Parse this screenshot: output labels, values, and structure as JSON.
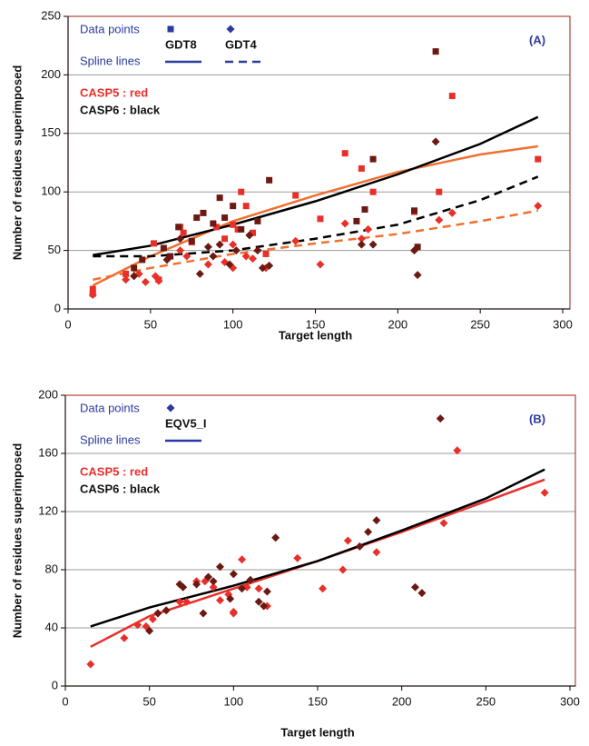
{
  "chart_data": [
    {
      "type": "scatter",
      "panel_label": "(A)",
      "x_label": "Target length",
      "y_label": "Number of residues superimposed",
      "xlim": [
        0,
        300
      ],
      "xticks": [
        0,
        50,
        100,
        150,
        200,
        250,
        300
      ],
      "ylim": [
        0,
        250
      ],
      "yticks": [
        0,
        50,
        100,
        150,
        200,
        250
      ],
      "grid": true,
      "legend": {
        "color": "#2b3aa0",
        "points_label": "Data points",
        "lines_label": "Spline lines",
        "entries": [
          {
            "label": "GDT8",
            "marker": "square",
            "dash": false
          },
          {
            "label": "GDT4",
            "marker": "diamond",
            "dash": true
          }
        ]
      },
      "notes": [
        {
          "text": "CASP5 :  red",
          "color": "#e8302a"
        },
        {
          "text": "CASP6 : black",
          "color": "#111111"
        }
      ],
      "series": [
        {
          "color": "#e8302a",
          "marker": "square",
          "x": [
            15,
            15,
            35,
            52,
            55,
            68,
            70,
            75,
            90,
            95,
            100,
            103,
            105,
            108,
            112,
            120,
            138,
            153,
            168,
            178,
            185,
            210,
            225,
            233,
            285
          ],
          "values": [
            17,
            13,
            30,
            56,
            25,
            70,
            65,
            57,
            70,
            60,
            72,
            68,
            100,
            88,
            65,
            47,
            97,
            77,
            133,
            120,
            100,
            83,
            100,
            182,
            128
          ]
        },
        {
          "color": "#e8302a",
          "marker": "diamond",
          "x": [
            15,
            35,
            43,
            47,
            53,
            55,
            68,
            72,
            85,
            95,
            100,
            100,
            108,
            112,
            120,
            138,
            153,
            168,
            178,
            182,
            225,
            233,
            285
          ],
          "values": [
            12,
            25,
            30,
            23,
            28,
            24,
            50,
            45,
            38,
            40,
            35,
            55,
            45,
            43,
            35,
            58,
            38,
            73,
            60,
            68,
            76,
            82,
            88
          ]
        },
        {
          "color": "#6b1a12",
          "marker": "square",
          "x": [
            40,
            45,
            58,
            62,
            67,
            75,
            78,
            82,
            88,
            92,
            95,
            100,
            105,
            115,
            122,
            175,
            180,
            185,
            210,
            212,
            223
          ],
          "values": [
            35,
            42,
            52,
            45,
            70,
            58,
            78,
            82,
            73,
            95,
            78,
            88,
            68,
            75,
            110,
            75,
            85,
            128,
            84,
            53,
            220
          ]
        },
        {
          "color": "#6b1a12",
          "marker": "diamond",
          "x": [
            40,
            60,
            68,
            80,
            85,
            88,
            92,
            98,
            102,
            110,
            115,
            118,
            122,
            178,
            185,
            210,
            212,
            223
          ],
          "values": [
            28,
            42,
            60,
            30,
            53,
            45,
            55,
            38,
            50,
            63,
            50,
            35,
            37,
            55,
            55,
            50,
            29,
            143
          ]
        }
      ],
      "lines": [
        {
          "color": "#f07030",
          "dash": false,
          "x": [
            15,
            50,
            100,
            150,
            200,
            250,
            285
          ],
          "values": [
            20,
            45,
            75,
            97,
            117,
            132,
            139
          ]
        },
        {
          "color": "#000000",
          "dash": false,
          "x": [
            15,
            50,
            100,
            150,
            200,
            250,
            285
          ],
          "values": [
            46,
            54,
            72,
            92,
            115,
            141,
            164
          ]
        },
        {
          "color": "#000000",
          "dash": true,
          "x": [
            15,
            50,
            100,
            150,
            200,
            250,
            285
          ],
          "values": [
            45,
            45,
            50,
            60,
            72,
            93,
            113
          ]
        },
        {
          "color": "#f07030",
          "dash": true,
          "x": [
            15,
            50,
            100,
            150,
            200,
            250,
            285
          ],
          "values": [
            25,
            35,
            47,
            56,
            64,
            75,
            84
          ]
        }
      ]
    },
    {
      "type": "scatter",
      "panel_label": "(B)",
      "x_label": "Target length",
      "y_label": "Number of residues superimposed",
      "xlim": [
        0,
        300
      ],
      "xticks": [
        0,
        50,
        100,
        150,
        200,
        250,
        300
      ],
      "ylim": [
        0,
        200
      ],
      "yticks": [
        0,
        40,
        80,
        120,
        160,
        200
      ],
      "grid": true,
      "legend": {
        "color": "#2b3aa0",
        "points_label": "Data points",
        "lines_label": "Spline lines",
        "entries": [
          {
            "label": "EQV5_I",
            "marker": "diamond",
            "dash": false
          }
        ]
      },
      "notes": [
        {
          "text": "CASP5 :  red",
          "color": "#e8302a"
        },
        {
          "text": "CASP6 : black",
          "color": "#111111"
        }
      ],
      "series": [
        {
          "color": "#e8302a",
          "marker": "diamond",
          "x": [
            15,
            35,
            43,
            48,
            52,
            55,
            68,
            72,
            78,
            83,
            88,
            92,
            97,
            100,
            100,
            105,
            108,
            115,
            120,
            138,
            153,
            165,
            168,
            185,
            225,
            233,
            285
          ],
          "values": [
            15,
            33,
            42,
            41,
            46,
            50,
            58,
            58,
            72,
            72,
            68,
            59,
            63,
            51,
            50,
            87,
            68,
            67,
            55,
            88,
            67,
            80,
            100,
            92,
            112,
            162,
            133
          ]
        },
        {
          "color": "#6b1a12",
          "marker": "diamond",
          "x": [
            50,
            55,
            60,
            68,
            70,
            78,
            82,
            85,
            88,
            92,
            98,
            100,
            105,
            110,
            115,
            118,
            120,
            125,
            175,
            180,
            185,
            208,
            212,
            223
          ],
          "values": [
            38,
            50,
            52,
            70,
            68,
            70,
            50,
            75,
            72,
            82,
            60,
            77,
            67,
            73,
            58,
            55,
            65,
            102,
            96,
            106,
            114,
            68,
            64,
            184
          ]
        }
      ],
      "lines": [
        {
          "color": "#e8302a",
          "dash": false,
          "x": [
            15,
            50,
            100,
            150,
            200,
            250,
            285
          ],
          "values": [
            27,
            48,
            67,
            86,
            106,
            127,
            142
          ]
        },
        {
          "color": "#000000",
          "dash": false,
          "x": [
            15,
            50,
            100,
            150,
            200,
            250,
            285
          ],
          "values": [
            41,
            54,
            69,
            86,
            107,
            129,
            149
          ]
        }
      ]
    }
  ]
}
